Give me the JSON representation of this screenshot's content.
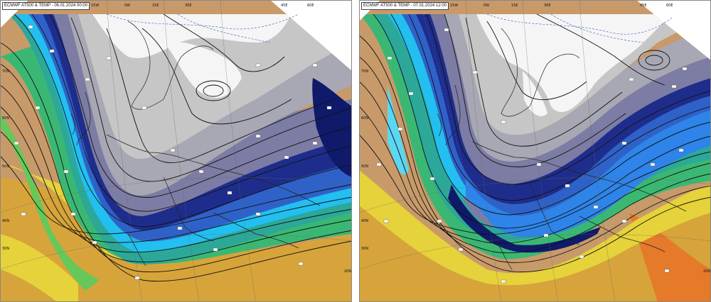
{
  "panels": [
    {
      "title": "ECMWF AT500 & TEMP - 06.01.2024 00:00",
      "lon_labels": [
        "15W",
        "0W",
        "15E",
        "30E",
        "45E",
        "60E"
      ],
      "lat_labels": [
        "70N",
        "60N",
        "50N",
        "40N",
        "30N",
        "20N"
      ]
    },
    {
      "title": "ECMWF AT500 & TEMP - 07.01.2024 12:00",
      "lon_labels": [
        "15W",
        "0W",
        "15E",
        "30E",
        "45E",
        "60E"
      ],
      "lat_labels": [
        "70N",
        "60N",
        "50N",
        "40N",
        "30N",
        "20N"
      ]
    }
  ],
  "colors": {
    "white_cold": "#f5f5f5",
    "light_gray": "#c6c6c6",
    "mid_gray": "#a8a8b4",
    "slate": "#7c7ca4",
    "navy": "#1e2d8c",
    "deep_navy": "#101a6a",
    "blue": "#2f62c8",
    "mid_blue": "#2e84e8",
    "cyan": "#22bff0",
    "light_cyan": "#5ad7f2",
    "teal": "#2ca899",
    "green": "#3ab873",
    "light_green": "#66c85a",
    "yellow_green": "#a8d44a",
    "yellow": "#e6d23a",
    "gold": "#d6a43a",
    "tan": "#c89a6a",
    "orange": "#e47a2a"
  }
}
